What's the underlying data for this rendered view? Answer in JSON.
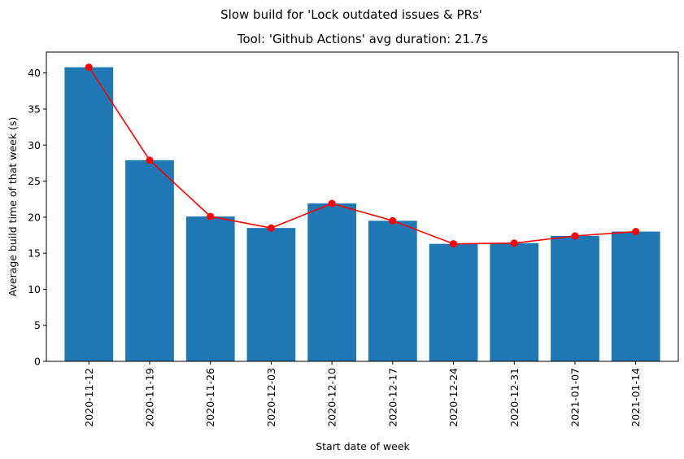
{
  "chart_data": {
    "type": "bar",
    "suptitle": "Slow build for 'Lock outdated issues & PRs'",
    "title": "Tool: 'Github Actions' avg duration: 21.7s",
    "xlabel": "Start date of week",
    "ylabel": "Average build time of that week (s)",
    "categories": [
      "2020-11-12",
      "2020-11-19",
      "2020-11-26",
      "2020-12-03",
      "2020-12-10",
      "2020-12-17",
      "2020-12-24",
      "2020-12-31",
      "2021-01-07",
      "2021-01-14"
    ],
    "series": [
      {
        "kind": "bar",
        "color": "#1f77b4",
        "values": [
          40.8,
          27.9,
          20.1,
          18.5,
          21.9,
          19.5,
          16.3,
          16.4,
          17.4,
          18.0
        ]
      },
      {
        "kind": "line",
        "color": "#ff0000",
        "marker": "circle",
        "values": [
          40.8,
          27.9,
          20.1,
          18.5,
          21.9,
          19.5,
          16.3,
          16.4,
          17.4,
          18.0
        ]
      }
    ],
    "ylim": [
      0,
      42.9
    ],
    "yticks": [
      0,
      5,
      10,
      15,
      20,
      25,
      30,
      35,
      40
    ],
    "grid": false,
    "legend": "none"
  }
}
